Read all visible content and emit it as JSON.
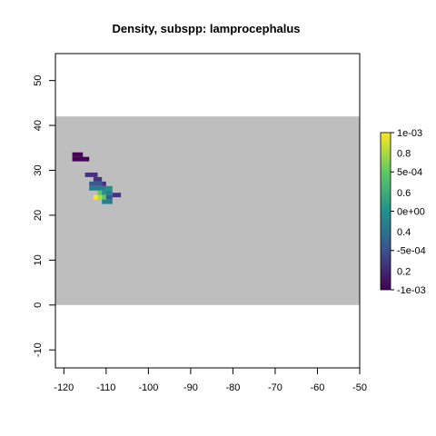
{
  "chart_data": {
    "type": "heatmap",
    "title": "Density, subspp: lamprocephalus",
    "xlabel": "",
    "ylabel": "",
    "xlim": [
      -122,
      -50
    ],
    "ylim": [
      -14,
      56
    ],
    "x_ticks": [
      -120,
      -110,
      -100,
      -90,
      -80,
      -70,
      -60,
      -50
    ],
    "y_ticks": [
      -10,
      0,
      10,
      20,
      30,
      40,
      50
    ],
    "background_region": {
      "lon": [
        -122,
        -50
      ],
      "lat": [
        0,
        42
      ],
      "color": "#bebebe"
    },
    "colorscale": [
      "#440154",
      "#3b528b",
      "#21918c",
      "#5ec962",
      "#fde725"
    ],
    "colorbar": {
      "range": [
        -0.001,
        0.001
      ],
      "tick_labels_inner": [
        "0.2",
        "0.4",
        "0.6",
        "0.8"
      ],
      "tick_labels_outer": [
        "-1e-03",
        "-5e-04",
        "0e+00",
        "5e-04",
        "1e-03"
      ]
    },
    "cells": [
      {
        "lon": [
          -118,
          -115.5
        ],
        "lat": [
          33,
          34
        ],
        "color": "#440154"
      },
      {
        "lon": [
          -118,
          -114
        ],
        "lat": [
          32,
          33
        ],
        "color": "#440154"
      },
      {
        "lon": [
          -115,
          -112
        ],
        "lat": [
          28.5,
          29.5
        ],
        "color": "#46337e"
      },
      {
        "lon": [
          -113,
          -111
        ],
        "lat": [
          27.5,
          28.5
        ],
        "color": "#46337e"
      },
      {
        "lon": [
          -114,
          -111
        ],
        "lat": [
          26.5,
          27.5
        ],
        "color": "#365c8d"
      },
      {
        "lon": [
          -111,
          -110
        ],
        "lat": [
          26.5,
          27.5
        ],
        "color": "#46337e"
      },
      {
        "lon": [
          -114,
          -110
        ],
        "lat": [
          25.5,
          26.5
        ],
        "color": "#277f8e"
      },
      {
        "lon": [
          -110,
          -108.5
        ],
        "lat": [
          25.5,
          26.5
        ],
        "color": "#21918c"
      },
      {
        "lon": [
          -112,
          -111
        ],
        "lat": [
          24.5,
          25.5
        ],
        "color": "#5ec962"
      },
      {
        "lon": [
          -111,
          -110
        ],
        "lat": [
          24.5,
          25.5
        ],
        "color": "#21918c"
      },
      {
        "lon": [
          -110,
          -108.5
        ],
        "lat": [
          24.5,
          25.5
        ],
        "color": "#277f8e"
      },
      {
        "lon": [
          -108.5,
          -106.5
        ],
        "lat": [
          24,
          25
        ],
        "color": "#46337e"
      },
      {
        "lon": [
          -113,
          -112
        ],
        "lat": [
          23.5,
          24.5
        ],
        "color": "#fde725"
      },
      {
        "lon": [
          -112,
          -111
        ],
        "lat": [
          23.5,
          24.5
        ],
        "color": "#b5de2b"
      },
      {
        "lon": [
          -111,
          -110
        ],
        "lat": [
          23.5,
          24.5
        ],
        "color": "#5ec962"
      },
      {
        "lon": [
          -110,
          -108.5
        ],
        "lat": [
          23.5,
          24.5
        ],
        "color": "#365c8d"
      },
      {
        "lon": [
          -111,
          -108.5
        ],
        "lat": [
          22.5,
          23.5
        ],
        "color": "#277f8e"
      }
    ]
  }
}
